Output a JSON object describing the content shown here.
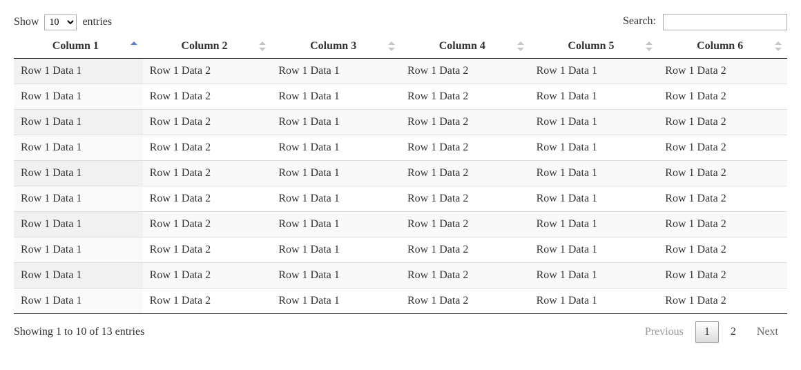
{
  "length": {
    "show_label": "Show",
    "entries_label": "entries",
    "selected": "10",
    "options": [
      "10",
      "25",
      "50",
      "100"
    ]
  },
  "search": {
    "label": "Search:",
    "value": ""
  },
  "table": {
    "sorted_column_index": 0,
    "sorted_direction": "asc",
    "columns": [
      "Column 1",
      "Column 2",
      "Column 3",
      "Column 4",
      "Column 5",
      "Column 6"
    ],
    "rows": [
      [
        "Row 1 Data 1",
        "Row 1 Data 2",
        "Row 1 Data 1",
        "Row 1 Data 2",
        "Row 1 Data 1",
        "Row 1 Data 2"
      ],
      [
        "Row 1 Data 1",
        "Row 1 Data 2",
        "Row 1 Data 1",
        "Row 1 Data 2",
        "Row 1 Data 1",
        "Row 1 Data 2"
      ],
      [
        "Row 1 Data 1",
        "Row 1 Data 2",
        "Row 1 Data 1",
        "Row 1 Data 2",
        "Row 1 Data 1",
        "Row 1 Data 2"
      ],
      [
        "Row 1 Data 1",
        "Row 1 Data 2",
        "Row 1 Data 1",
        "Row 1 Data 2",
        "Row 1 Data 1",
        "Row 1 Data 2"
      ],
      [
        "Row 1 Data 1",
        "Row 1 Data 2",
        "Row 1 Data 1",
        "Row 1 Data 2",
        "Row 1 Data 1",
        "Row 1 Data 2"
      ],
      [
        "Row 1 Data 1",
        "Row 1 Data 2",
        "Row 1 Data 1",
        "Row 1 Data 2",
        "Row 1 Data 1",
        "Row 1 Data 2"
      ],
      [
        "Row 1 Data 1",
        "Row 1 Data 2",
        "Row 1 Data 1",
        "Row 1 Data 2",
        "Row 1 Data 1",
        "Row 1 Data 2"
      ],
      [
        "Row 1 Data 1",
        "Row 1 Data 2",
        "Row 1 Data 1",
        "Row 1 Data 2",
        "Row 1 Data 1",
        "Row 1 Data 2"
      ],
      [
        "Row 1 Data 1",
        "Row 1 Data 2",
        "Row 1 Data 1",
        "Row 1 Data 2",
        "Row 1 Data 1",
        "Row 1 Data 2"
      ],
      [
        "Row 1 Data 1",
        "Row 1 Data 2",
        "Row 1 Data 1",
        "Row 1 Data 2",
        "Row 1 Data 1",
        "Row 1 Data 2"
      ]
    ],
    "colors": {
      "header_border": "#111111",
      "row_border": "#dddddd",
      "odd_bg": "#f9f9f9",
      "even_bg": "#ffffff",
      "sort_icon_inactive": "#c7c7c7",
      "sort_icon_active": "#5a7fd6"
    }
  },
  "info": {
    "text": "Showing 1 to 10 of 13 entries"
  },
  "paginate": {
    "previous_label": "Previous",
    "next_label": "Next",
    "pages": [
      "1",
      "2"
    ],
    "current_page": "1",
    "previous_disabled": true,
    "next_disabled": false
  }
}
